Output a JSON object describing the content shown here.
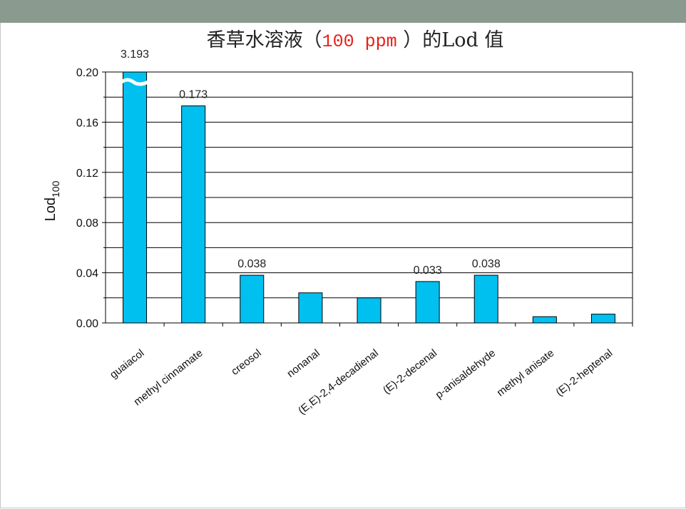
{
  "title": {
    "main_before": "香草水溶液（",
    "highlight": "100 ppm",
    "main_after": " ）的Lod 值"
  },
  "colors": {
    "bar": "#00c0f0",
    "highlight_text": "#e8201a",
    "top_bar": "#8a9a8e"
  },
  "chart_data": {
    "type": "bar",
    "ylabel_main": "Lod",
    "ylabel_sub": "100",
    "ylim": [
      0,
      0.2
    ],
    "yticks": [
      "0.00",
      "0.04",
      "0.08",
      "0.12",
      "0.16",
      "0.20"
    ],
    "grid": true,
    "categories": [
      "guaiacol",
      "methyl cinnamate",
      "creosol",
      "nonanal",
      "(E,E)-2,4-decadienal",
      "(E)-2-decenal",
      "p-anisaldehyde",
      "methyl anisate",
      "(E)-2-heptenal"
    ],
    "values": [
      3.193,
      0.173,
      0.038,
      0.024,
      0.02,
      0.033,
      0.038,
      0.005,
      0.007
    ],
    "data_labels": [
      "3.193",
      "0.173",
      "0.038",
      "",
      "",
      "0.033",
      "0.038",
      "",
      ""
    ],
    "axis_break_on": "guaiacol"
  }
}
